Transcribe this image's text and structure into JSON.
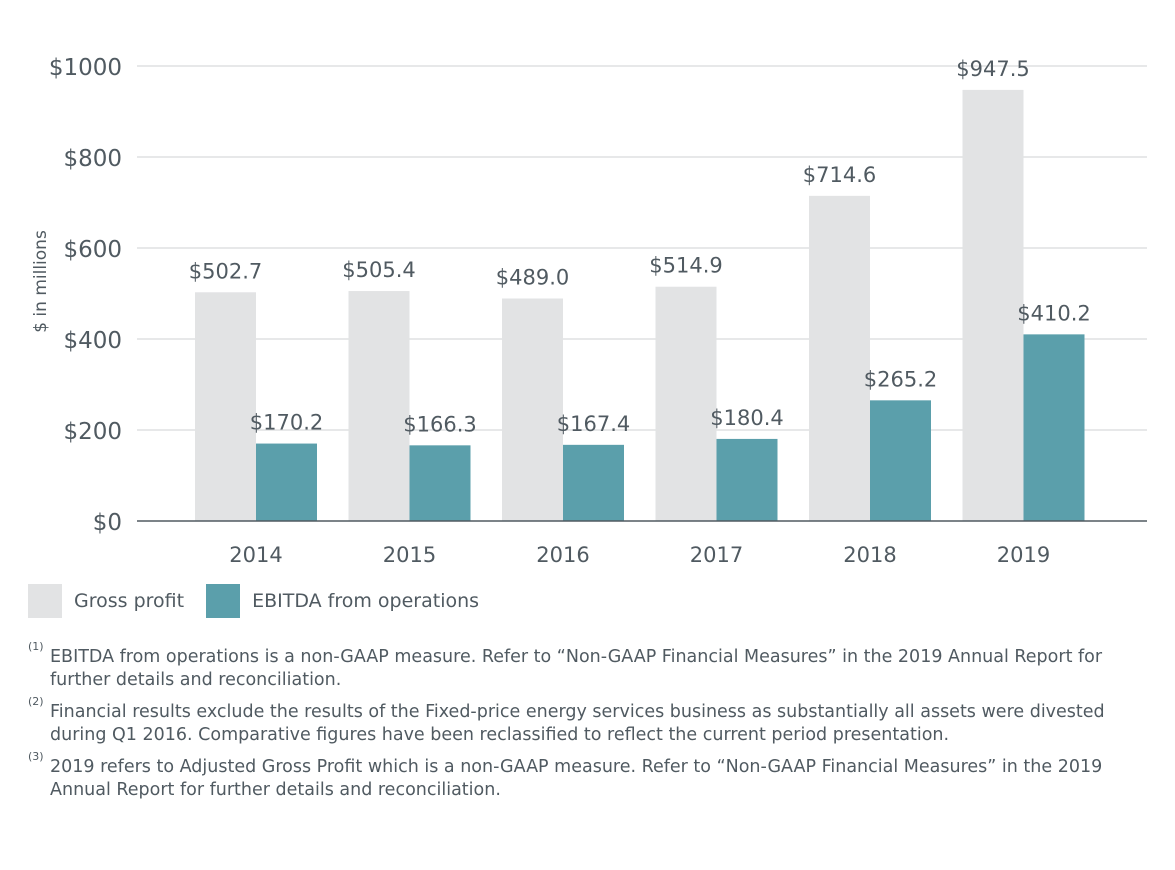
{
  "chart_data": {
    "type": "bar",
    "ylabel": "$ in millions",
    "ylim": [
      0,
      1000
    ],
    "y_ticks": [
      0,
      200,
      400,
      600,
      800,
      1000
    ],
    "y_tick_labels": [
      "$0",
      "$200",
      "$400",
      "$600",
      "$800",
      "$1000"
    ],
    "categories": [
      "2014",
      "2015",
      "2016",
      "2017",
      "2018",
      "2019"
    ],
    "grid": true,
    "legend_position": "bottom-left",
    "series": [
      {
        "name": "Gross profit",
        "color": "#e2e3e4",
        "values": [
          502.7,
          505.4,
          489.0,
          514.9,
          714.6,
          947.5
        ],
        "labels": [
          "$502.7",
          "$505.4",
          "$489.0",
          "$514.9",
          "$714.6",
          "$947.5"
        ]
      },
      {
        "name": "EBITDA from operations",
        "color": "#5b9fab",
        "values": [
          170.2,
          166.3,
          167.4,
          180.4,
          265.2,
          410.2
        ],
        "labels": [
          "$170.2",
          "$166.3",
          "$167.4",
          "$180.4",
          "$265.2",
          "$410.2"
        ]
      }
    ]
  },
  "footnotes": [
    {
      "marker": "(1)",
      "text": "EBITDA from operations is a non-GAAP measure. Refer to “Non-GAAP Financial Measures” in the 2019 Annual Report for further details and reconciliation."
    },
    {
      "marker": "(2)",
      "text": "Financial results exclude the results of the Fixed-price energy services business as substantially all assets were divested during Q1 2016. Comparative figures have been reclassified to reflect the current period presentation."
    },
    {
      "marker": "(3)",
      "text": "2019 refers to Adjusted Gross Profit which is a non-GAAP measure. Refer to “Non-GAAP Financial Measures” in the 2019 Annual Report for further details and reconciliation."
    }
  ]
}
